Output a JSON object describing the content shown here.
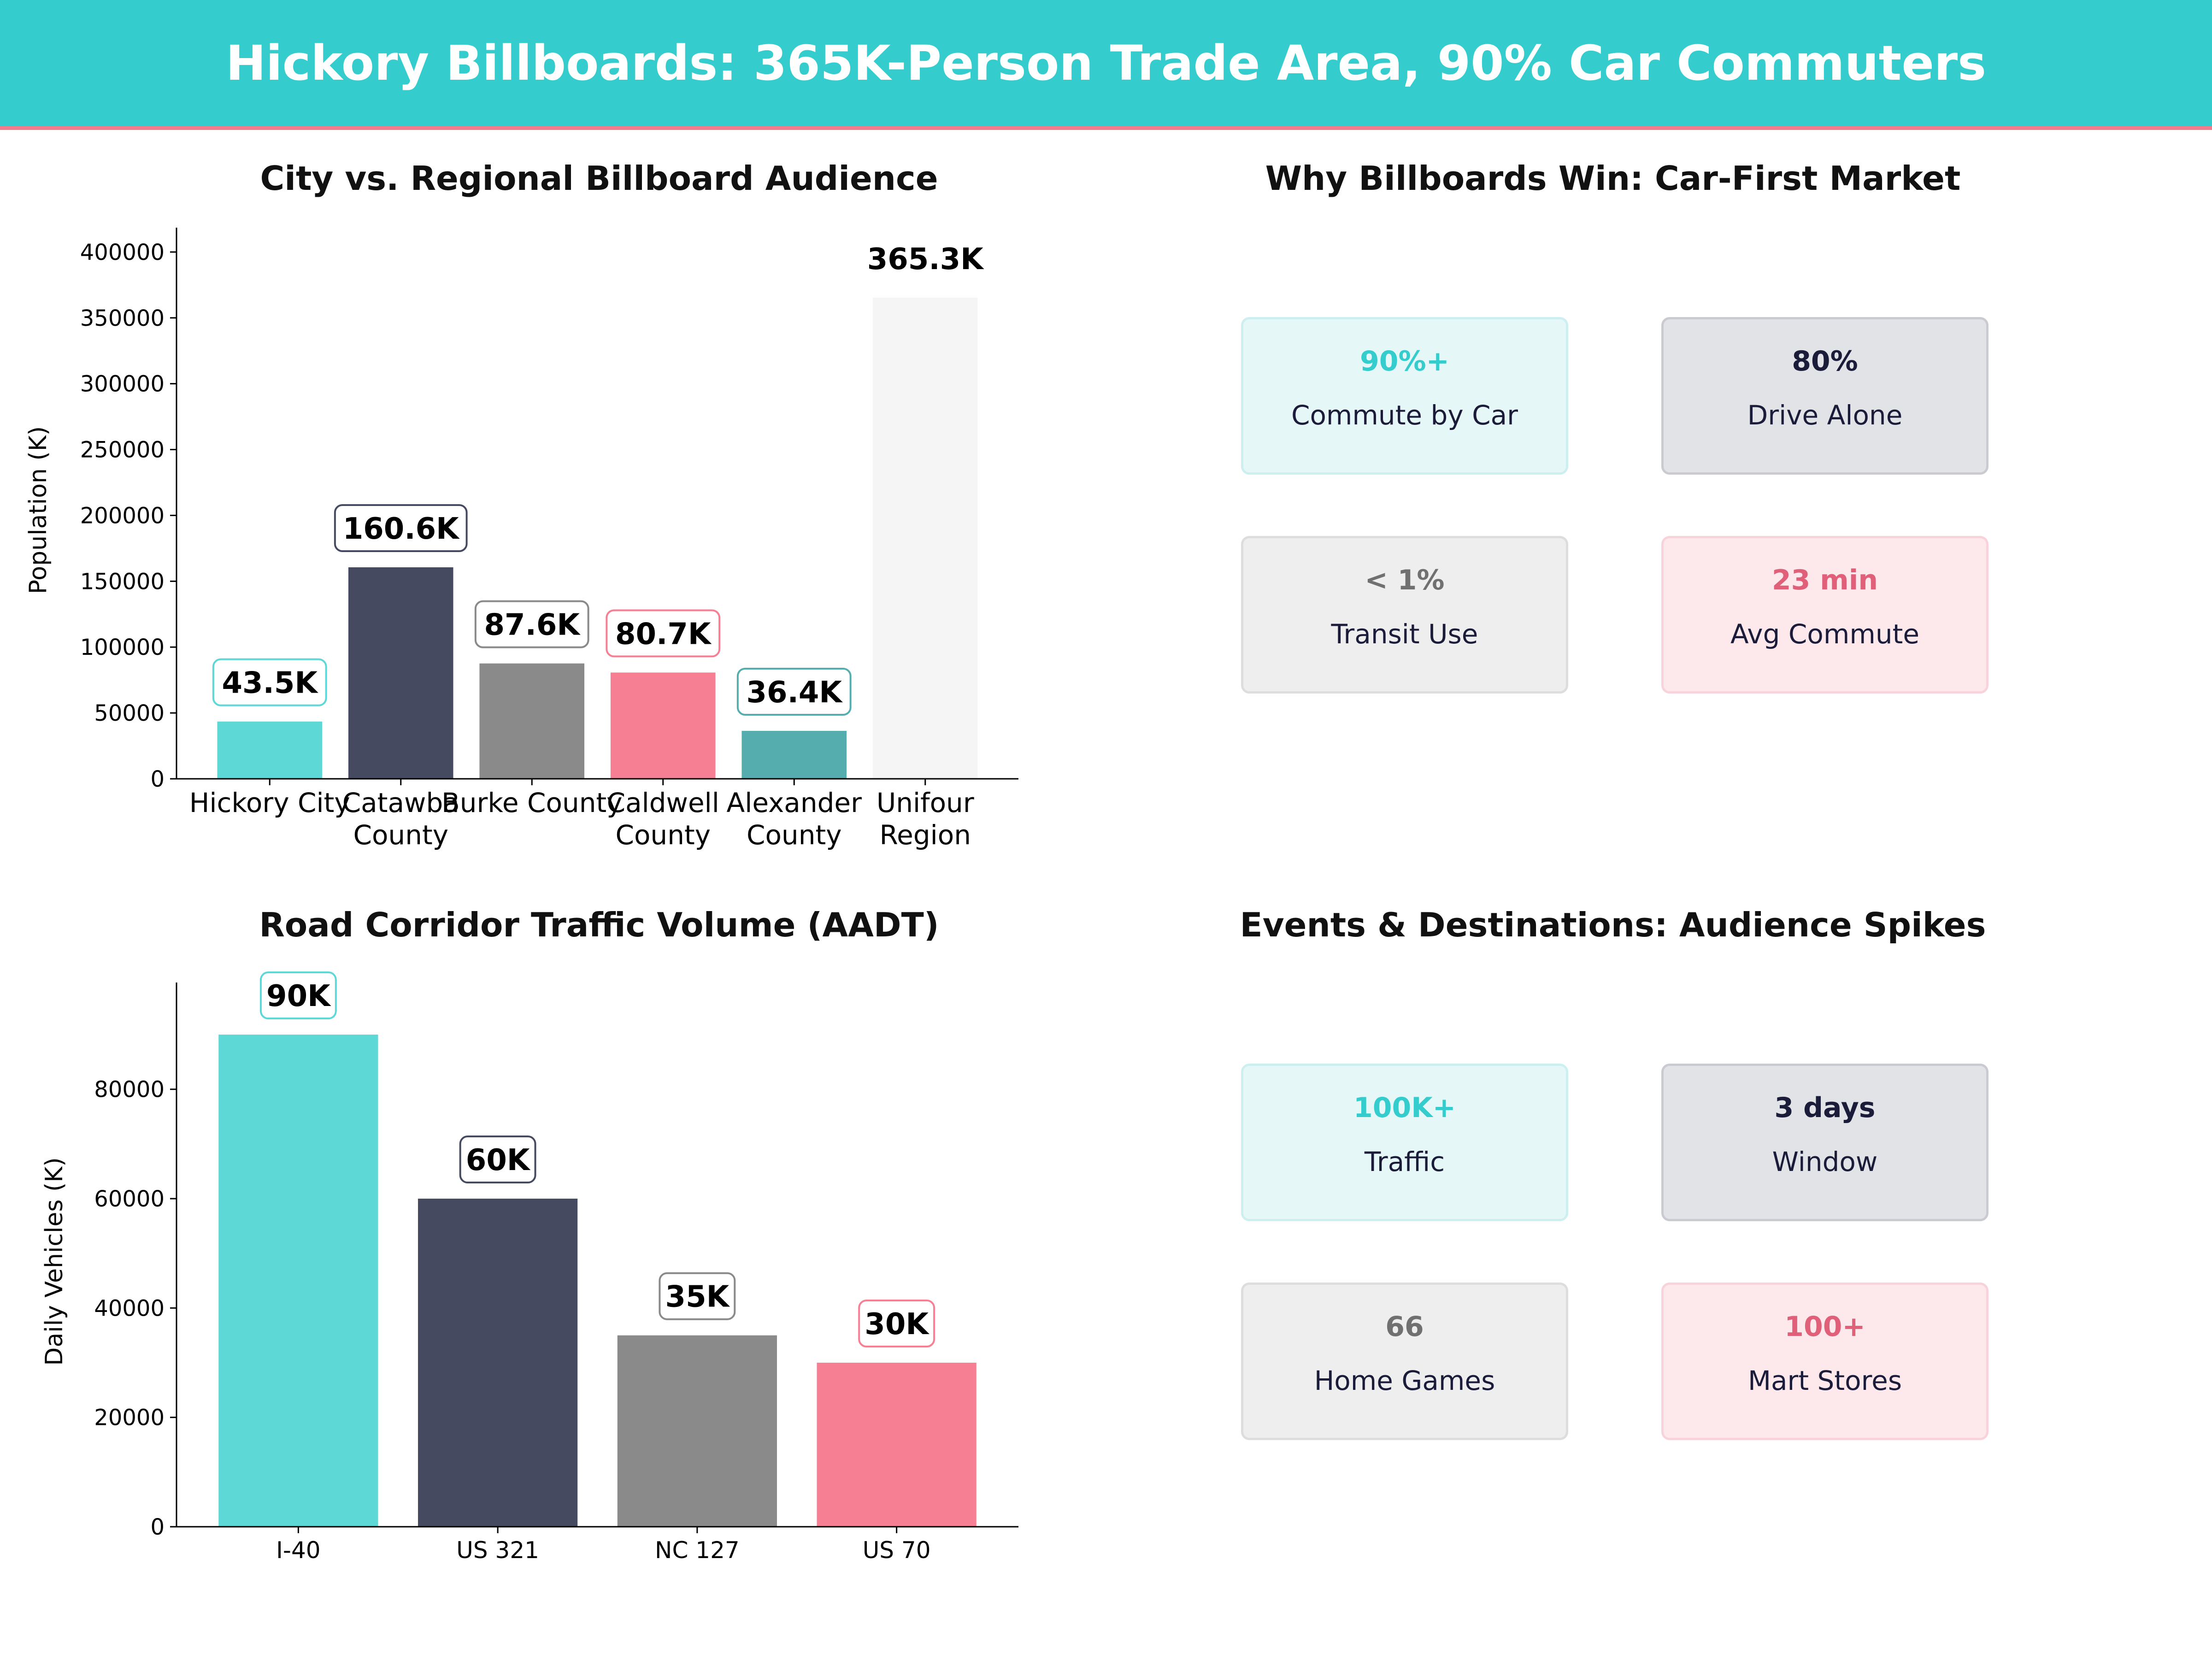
{
  "header": {
    "title": "Hickory Billboards: 365K-Person Trade Area, 90% Car Commuters"
  },
  "colors": {
    "teal": "#5ED8D6",
    "navy": "#464A60",
    "gray": "#8A8A8A",
    "pink": "#F77F93",
    "darkteal": "#56ADAD",
    "lightgray": "#F5F5F5"
  },
  "chart_data": [
    {
      "type": "bar",
      "title": "City vs. Regional Billboard Audience",
      "ylabel": "Population (K)",
      "xlabel": "",
      "categories": [
        "Hickory City",
        "Catawba County",
        "Burke County",
        "Caldwell County",
        "Alexander County",
        "Unifour Region"
      ],
      "category_lines": [
        [
          "Hickory City"
        ],
        [
          "Catawba",
          "County"
        ],
        [
          "Burke County"
        ],
        [
          "Caldwell",
          "County"
        ],
        [
          "Alexander",
          "County"
        ],
        [
          "Unifour",
          "Region"
        ]
      ],
      "values": [
        43500,
        160600,
        87600,
        80700,
        36400,
        365300
      ],
      "data_labels": [
        "43.5K",
        "160.6K",
        "87.6K",
        "80.7K",
        "36.4K",
        "365.3K"
      ],
      "bar_colors": [
        "#5ED8D6",
        "#464A60",
        "#8A8A8A",
        "#F77F93",
        "#56ADAD",
        "#F5F5F5"
      ],
      "label_borders": [
        "#5ED8D6",
        "#464A60",
        "#8A8A8A",
        "#F77F93",
        "#56ADAD",
        "none"
      ],
      "yticks": [
        0,
        50000,
        100000,
        150000,
        200000,
        250000,
        300000,
        350000,
        400000
      ],
      "ylim": [
        0,
        408000
      ],
      "grid": false
    },
    {
      "type": "bar",
      "title": "Road Corridor Traffic Volume (AADT)",
      "ylabel": "Daily Vehicles (K)",
      "xlabel": "",
      "categories": [
        "I-40",
        "US 321",
        "NC 127",
        "US 70"
      ],
      "category_lines": [
        [
          "I-40"
        ],
        [
          "US 321"
        ],
        [
          "NC 127"
        ],
        [
          "US 70"
        ]
      ],
      "values": [
        90000,
        60000,
        35000,
        30000
      ],
      "data_labels": [
        "90K",
        "60K",
        "35K",
        "30K"
      ],
      "bar_colors": [
        "#5ED8D6",
        "#464A60",
        "#8A8A8A",
        "#F77F93"
      ],
      "label_borders": [
        "#5ED8D6",
        "#464A60",
        "#8A8A8A",
        "#F77F93"
      ],
      "yticks": [
        0,
        20000,
        40000,
        60000,
        80000
      ],
      "ylim": [
        0,
        97000
      ],
      "grid": false
    }
  ],
  "panels": {
    "why": {
      "title": "Why Billboards Win: Car-First Market",
      "cards": [
        {
          "value": "90%+",
          "label": "Commute by Car",
          "value_color": "#34CCCC",
          "bg": "#E5F7F7",
          "border": "#CDEFEF"
        },
        {
          "value": "80%",
          "label": "Drive Alone",
          "value_color": "#1B1B3A",
          "bg": "#E2E3E7",
          "border": "#CACBD1"
        },
        {
          "value": "< 1%",
          "label": "Transit Use",
          "value_color": "#707070",
          "bg": "#EEEEEE",
          "border": "#DDDDDD"
        },
        {
          "value": "23 min",
          "label": "Avg Commute",
          "value_color": "#E0607A",
          "bg": "#FDE8EC",
          "border": "#F8D3DB"
        }
      ]
    },
    "events": {
      "title": "Events & Destinations: Audience Spikes",
      "cards": [
        {
          "value": "100K+",
          "label": "Traffic",
          "value_color": "#34CCCC",
          "bg": "#E5F7F7",
          "border": "#CDEFEF"
        },
        {
          "value": "3 days",
          "label": "Window",
          "value_color": "#1B1B3A",
          "bg": "#E2E3E7",
          "border": "#CACBD1"
        },
        {
          "value": "66",
          "label": "Home Games",
          "value_color": "#707070",
          "bg": "#EEEEEE",
          "border": "#DDDDDD"
        },
        {
          "value": "100+",
          "label": "Mart Stores",
          "value_color": "#E0607A",
          "bg": "#FDE8EC",
          "border": "#F8D3DB"
        }
      ]
    }
  }
}
